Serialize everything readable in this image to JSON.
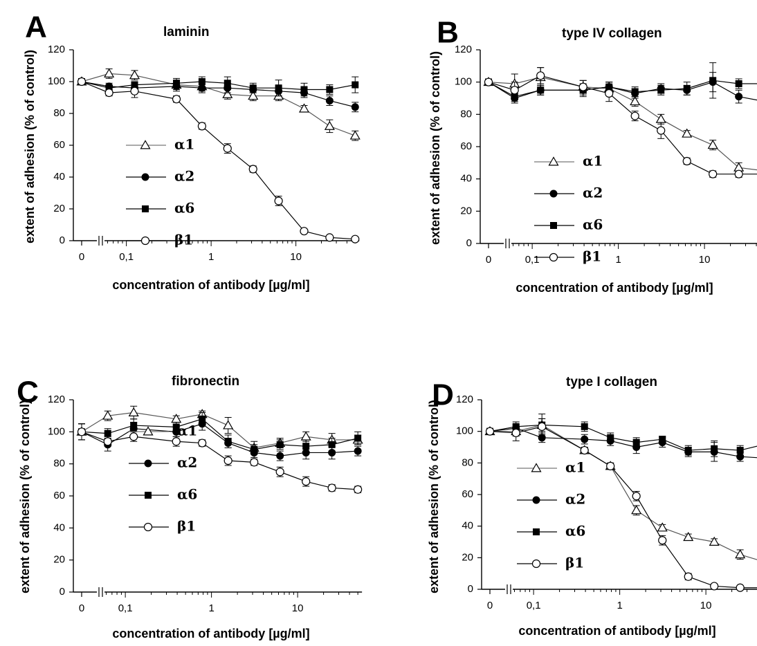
{
  "chart_data": [
    {
      "type": "line",
      "panel": "A",
      "title": "laminin",
      "xlabel": "concentration of antibody [µg/ml]",
      "ylabel": "extent of adhesion (% of control)",
      "x_scale": "log with broken axis at 0",
      "ylim": [
        0,
        120
      ],
      "yticks": [
        0,
        20,
        40,
        60,
        80,
        100,
        120
      ],
      "xtick_labels": [
        "0",
        "0,1",
        "1",
        "10"
      ],
      "x": [
        0,
        0.0625,
        0.125,
        0.39,
        0.78,
        1.56,
        3.125,
        6.25,
        12.5,
        25,
        50
      ],
      "grid": false,
      "legend_position": "lower-left",
      "series": [
        {
          "name": "α1",
          "marker": "open-triangle",
          "values": [
            100,
            105,
            104,
            98,
            97,
            92,
            91,
            91,
            83,
            72,
            66
          ],
          "errors": [
            1,
            3,
            3,
            3,
            3,
            3,
            3,
            3,
            2,
            4,
            3
          ]
        },
        {
          "name": "α2",
          "marker": "filled-circle",
          "values": [
            100,
            97,
            96,
            97,
            96,
            96,
            95,
            94,
            93,
            88,
            84
          ],
          "errors": [
            1,
            2,
            2,
            3,
            3,
            3,
            2,
            3,
            3,
            3,
            3
          ]
        },
        {
          "name": "α6",
          "marker": "filled-square",
          "values": [
            100,
            96,
            98,
            99,
            100,
            99,
            96,
            96,
            95,
            95,
            98
          ],
          "errors": [
            1,
            2,
            2,
            3,
            3,
            4,
            3,
            5,
            4,
            3,
            5
          ]
        },
        {
          "name": "β1",
          "marker": "open-circle",
          "values": [
            100,
            93,
            94,
            89,
            72,
            58,
            45,
            25,
            6,
            2,
            1
          ],
          "errors": [
            1,
            2,
            4,
            2,
            2,
            3,
            2,
            3,
            1,
            1,
            1
          ]
        }
      ]
    },
    {
      "type": "line",
      "panel": "B",
      "title": "type IV collagen",
      "xlabel": "concentration of antibody [µg/ml]",
      "ylabel": "extent of adhesion (% of control)",
      "x_scale": "log with broken axis at 0",
      "ylim": [
        0,
        120
      ],
      "yticks": [
        0,
        20,
        40,
        60,
        80,
        100,
        120
      ],
      "xtick_labels": [
        "0",
        "0,1",
        "1",
        "10"
      ],
      "x": [
        0,
        0.0625,
        0.125,
        0.39,
        0.78,
        1.56,
        3.125,
        6.25,
        12.5,
        25,
        50
      ],
      "grid": false,
      "legend_position": "lower-left",
      "series": [
        {
          "name": "α1",
          "marker": "open-triangle",
          "values": [
            100,
            99,
            103,
            97,
            96,
            88,
            77,
            68,
            61,
            47,
            45
          ],
          "errors": [
            2,
            6,
            6,
            4,
            4,
            3,
            3,
            2,
            3,
            3,
            2
          ]
        },
        {
          "name": "α2",
          "marker": "filled-circle",
          "values": [
            100,
            90,
            95,
            95,
            97,
            93,
            96,
            95,
            100,
            91,
            88
          ],
          "errors": [
            2,
            3,
            3,
            4,
            3,
            3,
            3,
            3,
            6,
            4,
            3
          ]
        },
        {
          "name": "α6",
          "marker": "filled-square",
          "values": [
            100,
            91,
            95,
            95,
            97,
            94,
            95,
            96,
            101,
            99,
            99
          ],
          "errors": [
            2,
            3,
            3,
            3,
            3,
            3,
            3,
            4,
            11,
            3,
            3
          ]
        },
        {
          "name": "β1",
          "marker": "open-circle",
          "values": [
            100,
            95,
            104,
            97,
            93,
            79,
            70,
            51,
            43,
            43,
            43
          ],
          "errors": [
            2,
            5,
            5,
            4,
            5,
            3,
            5,
            2,
            2,
            2,
            2
          ]
        }
      ]
    },
    {
      "type": "line",
      "panel": "C",
      "title": "fibronectin",
      "xlabel": "concentration of antibody [µg/ml]",
      "ylabel": "extent of adhesion (% of control)",
      "x_scale": "log with broken axis at 0",
      "ylim": [
        0,
        120
      ],
      "yticks": [
        0,
        20,
        40,
        60,
        80,
        100,
        120
      ],
      "xtick_labels": [
        "0",
        "0,1",
        "1",
        "10"
      ],
      "x": [
        0,
        0.0625,
        0.125,
        0.39,
        0.78,
        1.56,
        3.125,
        6.25,
        12.5,
        25,
        50
      ],
      "grid": false,
      "legend_position": "lower-left",
      "series": [
        {
          "name": "α1",
          "marker": "open-triangle",
          "values": [
            100,
            110,
            112,
            108,
            111,
            104,
            90,
            93,
            97,
            95,
            95
          ],
          "errors": [
            5,
            3,
            4,
            2,
            2,
            5,
            4,
            3,
            3,
            4,
            3
          ]
        },
        {
          "name": "α2",
          "marker": "filled-circle",
          "values": [
            100,
            92,
            102,
            100,
            105,
            93,
            87,
            85,
            87,
            87,
            88
          ],
          "errors": [
            5,
            4,
            4,
            3,
            4,
            3,
            3,
            3,
            4,
            4,
            3
          ]
        },
        {
          "name": "α6",
          "marker": "filled-square",
          "values": [
            100,
            99,
            104,
            103,
            108,
            94,
            89,
            92,
            91,
            92,
            96
          ],
          "errors": [
            5,
            3,
            4,
            3,
            4,
            4,
            3,
            3,
            4,
            4,
            4
          ]
        },
        {
          "name": "β1",
          "marker": "open-circle",
          "values": [
            100,
            94,
            97,
            94,
            93,
            82,
            81,
            75,
            69,
            65,
            64
          ],
          "errors": [
            5,
            3,
            3,
            3,
            2,
            3,
            2,
            3,
            3,
            2,
            2
          ]
        }
      ]
    },
    {
      "type": "line",
      "panel": "D",
      "title": "type I collagen",
      "xlabel": "concentration of antibody [µg/ml]",
      "ylabel": "extent of adhesion (% of control)",
      "x_scale": "log with broken axis at 0",
      "ylim": [
        0,
        120
      ],
      "yticks": [
        0,
        20,
        40,
        60,
        80,
        100,
        120
      ],
      "xtick_labels": [
        "0",
        "0,1",
        "1",
        "10"
      ],
      "x": [
        0,
        0.0625,
        0.125,
        0.39,
        0.78,
        1.56,
        3.125,
        6.25,
        12.5,
        25,
        50
      ],
      "grid": false,
      "legend_position": "lower-left",
      "series": [
        {
          "name": "α1",
          "marker": "open-triangle",
          "values": [
            100,
            100,
            104,
            88,
            78,
            50,
            39,
            33,
            30,
            22,
            17
          ],
          "errors": [
            1,
            3,
            4,
            2,
            2,
            3,
            2,
            2,
            2,
            3,
            2
          ]
        },
        {
          "name": "α2",
          "marker": "filled-circle",
          "values": [
            100,
            102,
            96,
            95,
            94,
            90,
            93,
            87,
            87,
            84,
            83
          ],
          "errors": [
            1,
            2,
            3,
            3,
            3,
            4,
            3,
            3,
            6,
            3,
            3
          ]
        },
        {
          "name": "α6",
          "marker": "filled-square",
          "values": [
            100,
            103,
            104,
            103,
            96,
            93,
            95,
            88,
            89,
            88,
            92
          ],
          "errors": [
            1,
            3,
            7,
            3,
            3,
            3,
            2,
            3,
            5,
            3,
            2
          ]
        },
        {
          "name": "β1",
          "marker": "open-circle",
          "values": [
            100,
            99,
            103,
            88,
            78,
            59,
            31,
            8,
            2,
            1,
            1
          ],
          "errors": [
            1,
            5,
            5,
            2,
            2,
            3,
            3,
            2,
            1,
            1,
            1
          ]
        }
      ]
    }
  ]
}
